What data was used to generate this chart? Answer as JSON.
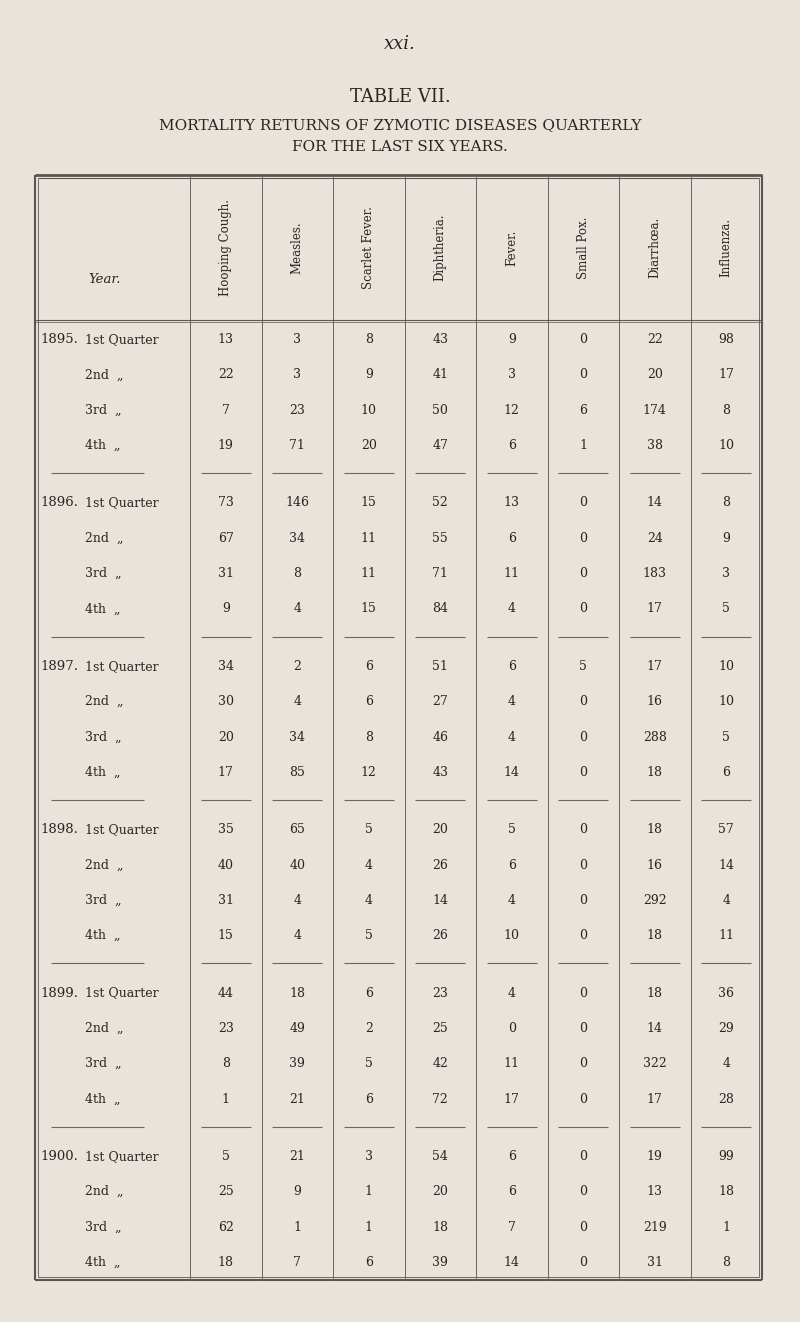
{
  "page_number": "xxi.",
  "title1": "TABLE VII.",
  "title2": "MORTALITY RETURNS OF ZYMOTIC DISEASES QUARTERLY",
  "title3": "FOR THE LAST SIX YEARS.",
  "col_headers_display": [
    "Hooping Cough.",
    "Measles.",
    "Scarlet Fever.",
    "Diphtheria.",
    "Fever.",
    "Small Pox.",
    "Diarrhœa.",
    "Influenza."
  ],
  "year_header": "Year.",
  "years": [
    {
      "year": "1895.",
      "rows": [
        {
          "quarter": "1st Quarter",
          "values": [
            13,
            3,
            8,
            43,
            9,
            0,
            22,
            98
          ]
        },
        {
          "quarter": "2nd  „",
          "values": [
            22,
            3,
            9,
            41,
            3,
            0,
            20,
            17
          ]
        },
        {
          "quarter": "3rd  „",
          "values": [
            7,
            23,
            10,
            50,
            12,
            6,
            174,
            8
          ]
        },
        {
          "quarter": "4th  „",
          "values": [
            19,
            71,
            20,
            47,
            6,
            1,
            38,
            10
          ]
        }
      ]
    },
    {
      "year": "1896.",
      "rows": [
        {
          "quarter": "1st Quarter",
          "values": [
            73,
            146,
            15,
            52,
            13,
            0,
            14,
            8
          ]
        },
        {
          "quarter": "2nd  „",
          "values": [
            67,
            34,
            11,
            55,
            6,
            0,
            24,
            9
          ]
        },
        {
          "quarter": "3rd  „",
          "values": [
            31,
            8,
            11,
            71,
            11,
            0,
            183,
            3
          ]
        },
        {
          "quarter": "4th  „",
          "values": [
            9,
            4,
            15,
            84,
            4,
            0,
            17,
            5
          ]
        }
      ]
    },
    {
      "year": "1897.",
      "rows": [
        {
          "quarter": "1st Quarter",
          "values": [
            34,
            2,
            6,
            51,
            6,
            5,
            17,
            10
          ]
        },
        {
          "quarter": "2nd  „",
          "values": [
            30,
            4,
            6,
            27,
            4,
            0,
            16,
            10
          ]
        },
        {
          "quarter": "3rd  „",
          "values": [
            20,
            34,
            8,
            46,
            4,
            0,
            288,
            5
          ]
        },
        {
          "quarter": "4th  „",
          "values": [
            17,
            85,
            12,
            43,
            14,
            0,
            18,
            6
          ]
        }
      ]
    },
    {
      "year": "1898.",
      "rows": [
        {
          "quarter": "1st Quarter",
          "values": [
            35,
            65,
            5,
            20,
            5,
            0,
            18,
            57
          ]
        },
        {
          "quarter": "2nd  „",
          "values": [
            40,
            40,
            4,
            26,
            6,
            0,
            16,
            14
          ]
        },
        {
          "quarter": "3rd  „",
          "values": [
            31,
            4,
            4,
            14,
            4,
            0,
            292,
            4
          ]
        },
        {
          "quarter": "4th  „",
          "values": [
            15,
            4,
            5,
            26,
            10,
            0,
            18,
            11
          ]
        }
      ]
    },
    {
      "year": "1899.",
      "rows": [
        {
          "quarter": "1st Quarter",
          "values": [
            44,
            18,
            6,
            23,
            4,
            0,
            18,
            36
          ]
        },
        {
          "quarter": "2nd  „",
          "values": [
            23,
            49,
            2,
            25,
            0,
            0,
            14,
            29
          ]
        },
        {
          "quarter": "3rd  „",
          "values": [
            8,
            39,
            5,
            42,
            11,
            0,
            322,
            4
          ]
        },
        {
          "quarter": "4th  „",
          "values": [
            1,
            21,
            6,
            72,
            17,
            0,
            17,
            28
          ]
        }
      ]
    },
    {
      "year": "1900.",
      "rows": [
        {
          "quarter": "1st Quarter",
          "values": [
            5,
            21,
            3,
            54,
            6,
            0,
            19,
            99
          ]
        },
        {
          "quarter": "2nd  „",
          "values": [
            25,
            9,
            1,
            20,
            6,
            0,
            13,
            18
          ]
        },
        {
          "quarter": "3rd  „",
          "values": [
            62,
            1,
            1,
            18,
            7,
            0,
            219,
            1
          ]
        },
        {
          "quarter": "4th  „",
          "values": [
            18,
            7,
            6,
            39,
            14,
            0,
            31,
            8
          ]
        }
      ]
    }
  ],
  "bg_color": "#e8e4dc",
  "text_color": "#2a2520",
  "border_color": "#5a5550",
  "line_color": "#6a6560"
}
